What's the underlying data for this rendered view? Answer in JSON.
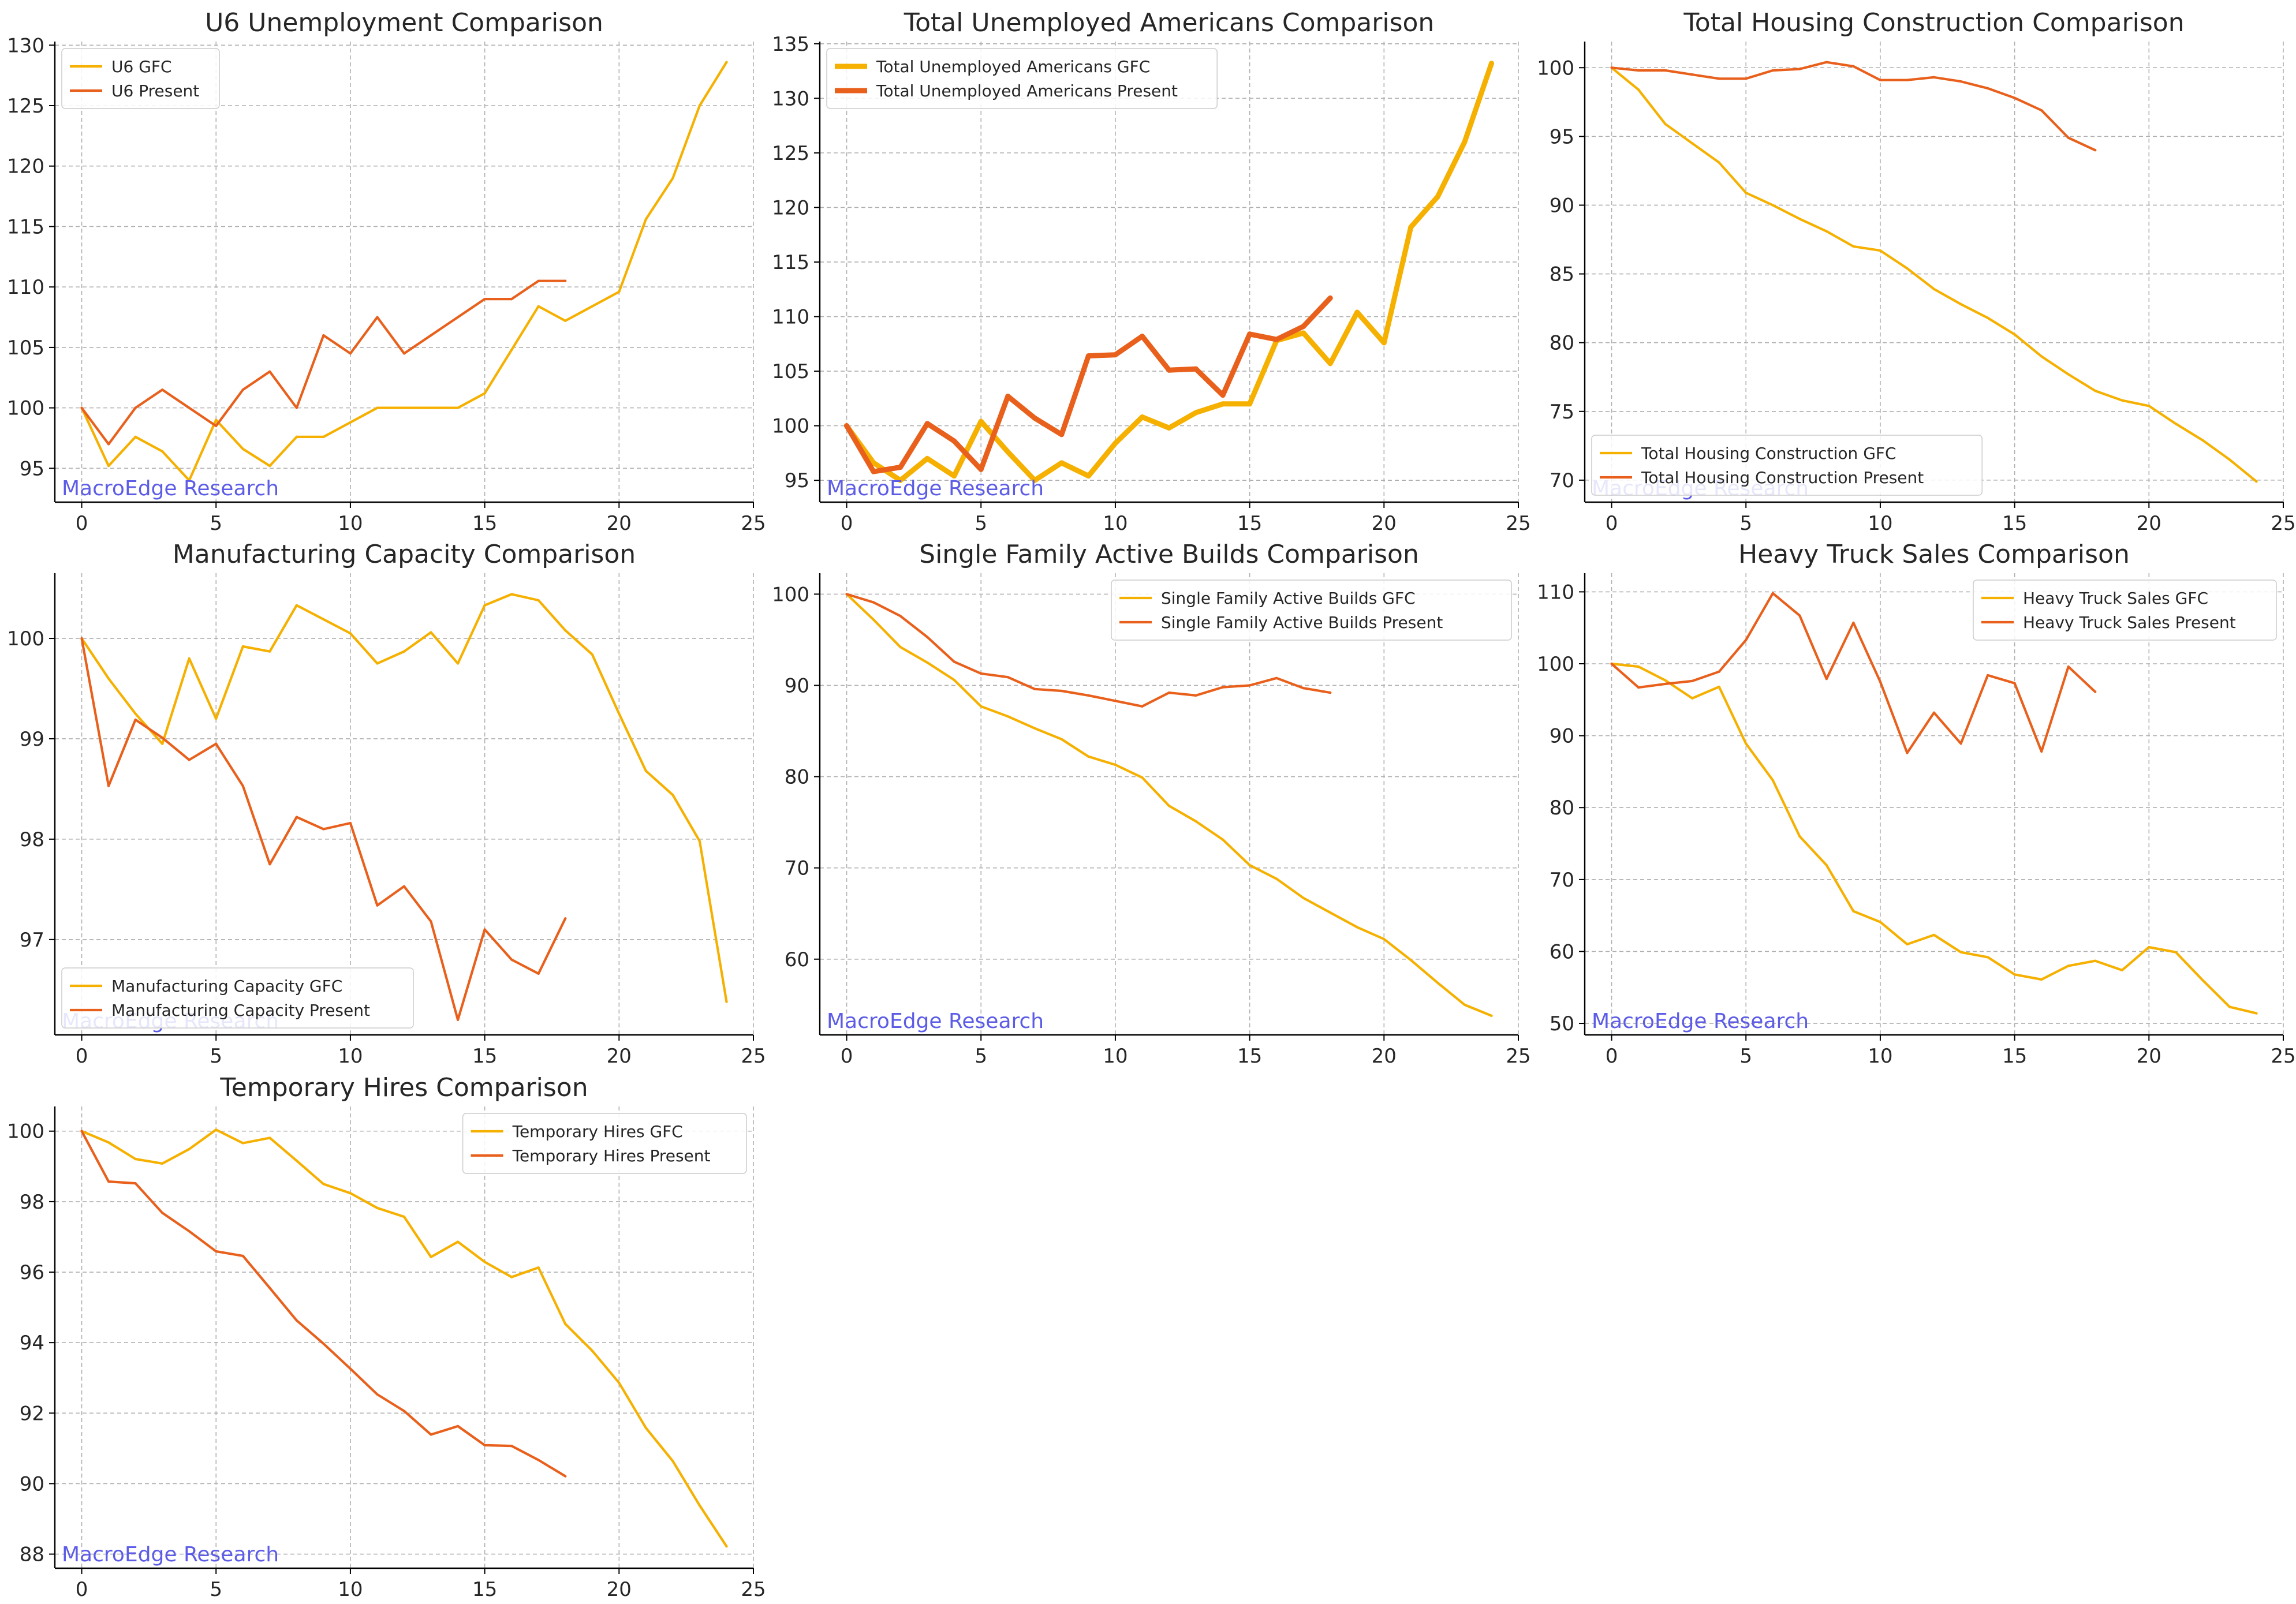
{
  "figure": {
    "watermark": "MacroEdge Research",
    "colors": {
      "gfc": "#F5B000",
      "present": "#E8601C",
      "grid": "#b0b0b0",
      "axis": "#000000",
      "text": "#262626",
      "watermark": "#5C5CE6"
    }
  },
  "chart_data": [
    {
      "type": "line",
      "title": "U6 Unemployment Comparison",
      "xlim": [
        -1,
        25
      ],
      "ylim": [
        92.2,
        130.3
      ],
      "xticks": [
        0,
        5,
        10,
        15,
        20,
        25
      ],
      "yticks": [
        95,
        100,
        105,
        110,
        115,
        120,
        125,
        130
      ],
      "legend_position": "upper-left",
      "bold_lines": false,
      "series": [
        {
          "name": "U6 GFC",
          "color": "#F5B000",
          "x": [
            0,
            1,
            2,
            3,
            4,
            5,
            6,
            7,
            8,
            9,
            10,
            11,
            12,
            13,
            14,
            15,
            16,
            17,
            18,
            19,
            20,
            21,
            22,
            23,
            24
          ],
          "y": [
            100,
            95.2,
            97.6,
            96.4,
            94,
            99,
            96.6,
            95.2,
            97.6,
            97.6,
            98.8,
            100,
            100,
            100,
            100,
            101.2,
            104.8,
            108.4,
            107.2,
            108.4,
            109.6,
            115.6,
            119.0,
            125.0,
            128.6
          ]
        },
        {
          "name": "U6 Present",
          "color": "#E8601C",
          "x": [
            0,
            1,
            2,
            3,
            4,
            5,
            6,
            7,
            8,
            9,
            10,
            11,
            12,
            13,
            14,
            15,
            16,
            17,
            18
          ],
          "y": [
            100,
            97,
            100,
            101.5,
            100,
            98.5,
            101.5,
            103,
            100,
            106,
            104.5,
            107.5,
            104.5,
            106,
            107.5,
            109,
            109,
            110.5,
            110.5
          ]
        }
      ]
    },
    {
      "type": "line",
      "title": "Total Unemployed Americans Comparison",
      "xlim": [
        -1,
        25
      ],
      "ylim": [
        93.0,
        135.2
      ],
      "xticks": [
        0,
        5,
        10,
        15,
        20,
        25
      ],
      "yticks": [
        95,
        100,
        105,
        110,
        115,
        120,
        125,
        130,
        135
      ],
      "legend_position": "upper-left",
      "bold_lines": true,
      "series": [
        {
          "name": "Total Unemployed Americans GFC",
          "color": "#F5B000",
          "x": [
            0,
            1,
            2,
            3,
            4,
            5,
            6,
            7,
            8,
            9,
            10,
            11,
            12,
            13,
            14,
            15,
            16,
            17,
            18,
            19,
            20,
            21,
            22,
            23,
            24
          ],
          "y": [
            100,
            96.6,
            95,
            97,
            95.4,
            100.4,
            97.6,
            95,
            96.6,
            95.4,
            98.4,
            100.8,
            99.8,
            101.2,
            102.0,
            102.0,
            107.8,
            108.5,
            105.7,
            110.4,
            107.6,
            118.2,
            121.0,
            126.0,
            133.2
          ]
        },
        {
          "name": "Total Unemployed Americans Present",
          "color": "#E8601C",
          "x": [
            0,
            1,
            2,
            3,
            4,
            5,
            6,
            7,
            8,
            9,
            10,
            11,
            12,
            13,
            14,
            15,
            16,
            17,
            18
          ],
          "y": [
            100,
            95.8,
            96.2,
            100.2,
            98.6,
            96,
            102.7,
            100.7,
            99.2,
            106.4,
            106.5,
            108.2,
            105.1,
            105.2,
            102.8,
            108.4,
            107.9,
            109.1,
            111.7
          ]
        }
      ]
    },
    {
      "type": "line",
      "title": "Total Housing Construction Comparison",
      "xlim": [
        -1,
        25
      ],
      "ylim": [
        68.4,
        101.9
      ],
      "xticks": [
        0,
        5,
        10,
        15,
        20,
        25
      ],
      "yticks": [
        70,
        75,
        80,
        85,
        90,
        95,
        100
      ],
      "legend_position": "lower-left",
      "bold_lines": false,
      "series": [
        {
          "name": "Total Housing Construction GFC",
          "color": "#F5B000",
          "x": [
            0,
            1,
            2,
            3,
            4,
            5,
            6,
            7,
            8,
            9,
            10,
            11,
            12,
            13,
            14,
            15,
            16,
            17,
            18,
            19,
            20,
            21,
            22,
            23,
            24
          ],
          "y": [
            100,
            98.4,
            95.9,
            94.5,
            93.1,
            90.9,
            90.0,
            89.0,
            88.1,
            87.0,
            86.7,
            85.4,
            83.9,
            82.8,
            81.8,
            80.6,
            79.0,
            77.7,
            76.5,
            75.8,
            75.4,
            74.1,
            72.9,
            71.5,
            69.9
          ]
        },
        {
          "name": "Total Housing Construction Present",
          "color": "#E8601C",
          "x": [
            0,
            1,
            2,
            3,
            4,
            5,
            6,
            7,
            8,
            9,
            10,
            11,
            12,
            13,
            14,
            15,
            16,
            17,
            18
          ],
          "y": [
            100,
            99.8,
            99.8,
            99.5,
            99.2,
            99.2,
            99.8,
            99.9,
            100.4,
            100.1,
            99.1,
            99.1,
            99.3,
            99.0,
            98.5,
            97.8,
            96.9,
            94.9,
            94.0
          ]
        }
      ]
    },
    {
      "type": "line",
      "title": "Manufacturing Capacity Comparison",
      "xlim": [
        -1,
        25
      ],
      "ylim": [
        96.05,
        100.65
      ],
      "xticks": [
        0,
        5,
        10,
        15,
        20,
        25
      ],
      "yticks": [
        97,
        98,
        99,
        100
      ],
      "legend_position": "lower-left",
      "bold_lines": false,
      "series": [
        {
          "name": "Manufacturing Capacity GFC",
          "color": "#F5B000",
          "x": [
            0,
            1,
            2,
            3,
            4,
            5,
            6,
            7,
            8,
            9,
            10,
            11,
            12,
            13,
            14,
            15,
            16,
            17,
            18,
            19,
            20,
            21,
            22,
            23,
            24
          ],
          "y": [
            100,
            99.6,
            99.25,
            98.95,
            99.8,
            99.2,
            99.92,
            99.87,
            100.33,
            100.19,
            100.05,
            99.75,
            99.87,
            100.06,
            99.75,
            100.33,
            100.44,
            100.38,
            100.08,
            99.84,
            99.25,
            98.68,
            98.44,
            97.98,
            96.38
          ]
        },
        {
          "name": "Manufacturing Capacity Present",
          "color": "#E8601C",
          "x": [
            0,
            1,
            2,
            3,
            4,
            5,
            6,
            7,
            8,
            9,
            10,
            11,
            12,
            13,
            14,
            15,
            16,
            17,
            18
          ],
          "y": [
            100,
            98.53,
            99.19,
            99.01,
            98.79,
            98.95,
            98.53,
            97.75,
            98.22,
            98.1,
            98.16,
            97.34,
            97.53,
            97.18,
            96.2,
            97.1,
            96.8,
            96.66,
            97.21
          ]
        }
      ]
    },
    {
      "type": "line",
      "title": "Single Family Active Builds Comparison",
      "xlim": [
        -1,
        25
      ],
      "ylim": [
        51.7,
        102.3
      ],
      "xticks": [
        0,
        5,
        10,
        15,
        20,
        25
      ],
      "yticks": [
        60,
        70,
        80,
        90,
        100
      ],
      "legend_position": "upper-right",
      "bold_lines": false,
      "series": [
        {
          "name": "Single Family Active Builds GFC",
          "color": "#F5B000",
          "x": [
            0,
            1,
            2,
            3,
            4,
            5,
            6,
            7,
            8,
            9,
            10,
            11,
            12,
            13,
            14,
            15,
            16,
            17,
            18,
            19,
            20,
            21,
            22,
            23,
            24
          ],
          "y": [
            100,
            97.2,
            94.2,
            92.5,
            90.6,
            87.7,
            86.6,
            85.3,
            84.1,
            82.2,
            81.3,
            79.9,
            76.8,
            75.1,
            73.1,
            70.3,
            68.8,
            66.7,
            65.1,
            63.5,
            62.2,
            59.9,
            57.4,
            55.0,
            53.8
          ]
        },
        {
          "name": "Single Family Active Builds Present",
          "color": "#E8601C",
          "x": [
            0,
            1,
            2,
            3,
            4,
            5,
            6,
            7,
            8,
            9,
            10,
            11,
            12,
            13,
            14,
            15,
            16,
            17,
            18
          ],
          "y": [
            100,
            99.1,
            97.6,
            95.3,
            92.6,
            91.3,
            90.9,
            89.6,
            89.4,
            88.9,
            88.3,
            87.7,
            89.2,
            88.9,
            89.8,
            90.0,
            90.8,
            89.7,
            89.2
          ]
        }
      ]
    },
    {
      "type": "line",
      "title": "Heavy Truck Sales Comparison",
      "xlim": [
        -1,
        25
      ],
      "ylim": [
        48.4,
        112.6
      ],
      "xticks": [
        0,
        5,
        10,
        15,
        20,
        25
      ],
      "yticks": [
        50,
        60,
        70,
        80,
        90,
        100,
        110
      ],
      "legend_position": "upper-right",
      "bold_lines": false,
      "series": [
        {
          "name": "Heavy Truck Sales GFC",
          "color": "#F5B000",
          "x": [
            0,
            1,
            2,
            3,
            4,
            5,
            6,
            7,
            8,
            9,
            10,
            11,
            12,
            13,
            14,
            15,
            16,
            17,
            18,
            19,
            20,
            21,
            22,
            23,
            24
          ],
          "y": [
            100,
            99.6,
            97.7,
            95.2,
            96.8,
            88.9,
            83.8,
            76.0,
            72.0,
            65.6,
            64.1,
            61.0,
            62.3,
            59.9,
            59.2,
            56.8,
            56.1,
            58.0,
            58.7,
            57.4,
            60.6,
            59.9,
            56.0,
            52.3,
            51.4
          ]
        },
        {
          "name": "Heavy Truck Sales Present",
          "color": "#E8601C",
          "x": [
            0,
            1,
            2,
            3,
            4,
            5,
            6,
            7,
            8,
            9,
            10,
            11,
            12,
            13,
            14,
            15,
            16,
            17,
            18
          ],
          "y": [
            100,
            96.7,
            97.2,
            97.6,
            98.9,
            103.3,
            109.8,
            106.7,
            97.9,
            105.7,
            97.5,
            87.6,
            93.2,
            88.9,
            98.4,
            97.3,
            87.8,
            99.6,
            96.1
          ]
        }
      ]
    },
    {
      "type": "line",
      "title": "Temporary Hires Comparison",
      "xlim": [
        -1,
        25
      ],
      "ylim": [
        87.6,
        100.7
      ],
      "xticks": [
        0,
        5,
        10,
        15,
        20,
        25
      ],
      "yticks": [
        88,
        90,
        92,
        94,
        96,
        98,
        100
      ],
      "legend_position": "upper-right",
      "bold_lines": false,
      "series": [
        {
          "name": "Temporary Hires GFC",
          "color": "#F5B000",
          "x": [
            0,
            1,
            2,
            3,
            4,
            5,
            6,
            7,
            8,
            9,
            10,
            11,
            12,
            13,
            14,
            15,
            16,
            17,
            18,
            19,
            20,
            21,
            22,
            23,
            24
          ],
          "y": [
            100,
            99.68,
            99.21,
            99.08,
            99.49,
            100.04,
            99.66,
            99.81,
            99.16,
            98.5,
            98.24,
            97.82,
            97.57,
            96.43,
            96.86,
            96.29,
            95.86,
            96.13,
            94.53,
            93.77,
            92.86,
            91.58,
            90.64,
            89.38,
            88.22
          ]
        },
        {
          "name": "Temporary Hires Present",
          "color": "#E8601C",
          "x": [
            0,
            1,
            2,
            3,
            4,
            5,
            6,
            7,
            8,
            9,
            10,
            11,
            12,
            13,
            14,
            15,
            16,
            17,
            18
          ],
          "y": [
            100,
            98.57,
            98.52,
            97.68,
            97.16,
            96.59,
            96.46,
            95.55,
            94.63,
            93.97,
            93.26,
            92.53,
            92.06,
            91.39,
            91.63,
            91.09,
            91.07,
            90.67,
            90.21
          ]
        }
      ]
    }
  ]
}
